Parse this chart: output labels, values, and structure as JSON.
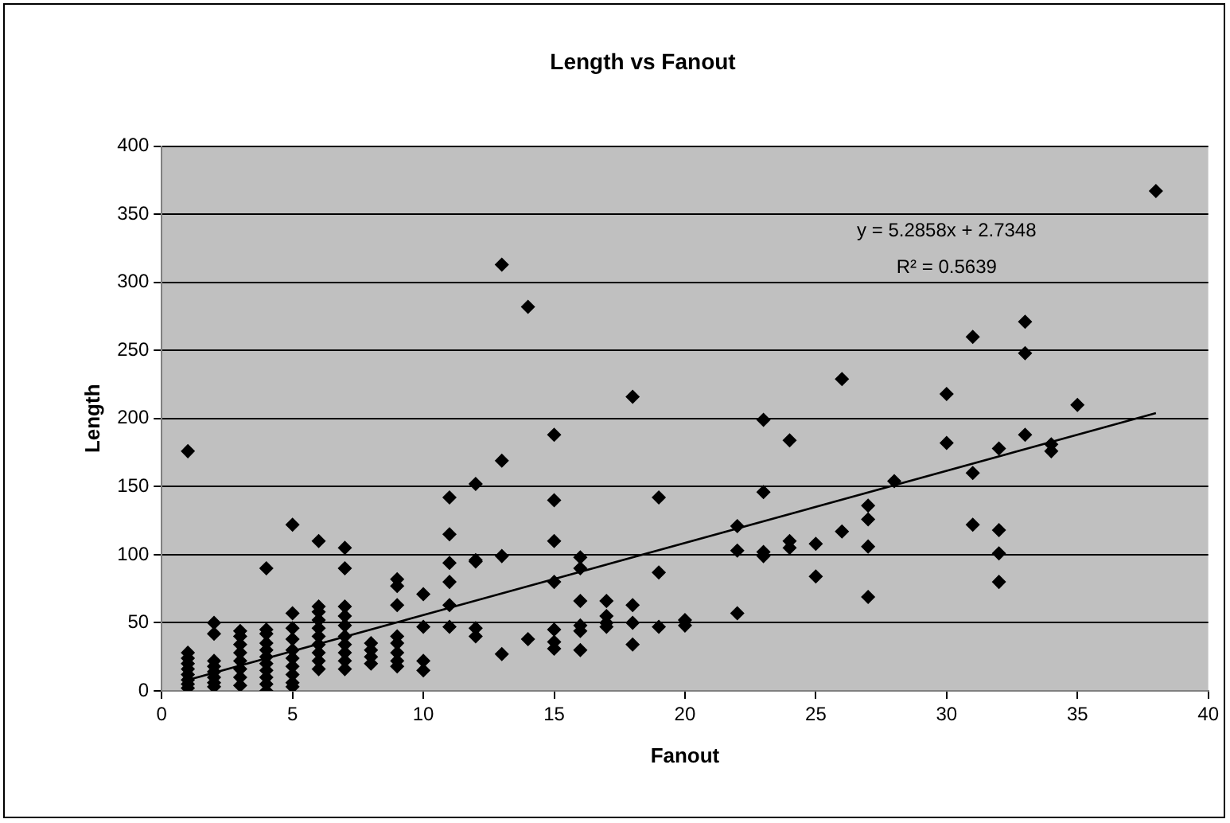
{
  "chart_data": {
    "type": "scatter",
    "title": "Length vs Fanout",
    "xlabel": "Fanout",
    "ylabel": "Length",
    "xlim": [
      0,
      40
    ],
    "xticks": [
      0,
      5,
      10,
      15,
      20,
      25,
      30,
      35,
      40
    ],
    "ylim": [
      0,
      400
    ],
    "yticks": [
      0,
      50,
      100,
      150,
      200,
      250,
      300,
      350,
      400
    ],
    "grid": "y",
    "legend": false,
    "annotations": [
      "y = 5.2858x + 2.7348",
      "R² = 0.5639"
    ],
    "series": [
      {
        "marker": "diamond",
        "color": "#000000",
        "x": [
          1,
          1,
          1,
          1,
          1,
          1,
          1,
          1,
          1,
          2,
          2,
          2,
          2,
          2,
          2,
          2,
          2,
          3,
          3,
          3,
          3,
          3,
          3,
          3,
          3,
          4,
          4,
          4,
          4,
          4,
          4,
          4,
          4,
          4,
          4,
          4,
          5,
          5,
          5,
          5,
          5,
          5,
          5,
          5,
          5,
          5,
          6,
          6,
          6,
          6,
          6,
          6,
          6,
          6,
          6,
          6,
          7,
          7,
          7,
          7,
          7,
          7,
          7,
          7,
          7,
          7,
          8,
          8,
          8,
          8,
          9,
          9,
          9,
          9,
          9,
          9,
          9,
          9,
          10,
          10,
          10,
          10,
          11,
          11,
          11,
          11,
          11,
          11,
          12,
          12,
          12,
          12,
          12,
          13,
          13,
          13,
          13,
          14,
          14,
          15,
          15,
          15,
          15,
          15,
          15,
          15,
          16,
          16,
          16,
          16,
          16,
          16,
          17,
          17,
          17,
          17,
          18,
          18,
          18,
          18,
          19,
          19,
          19,
          20,
          20,
          22,
          22,
          22,
          23,
          23,
          23,
          23,
          24,
          24,
          24,
          25,
          25,
          26,
          26,
          27,
          27,
          27,
          27,
          28,
          30,
          30,
          31,
          31,
          31,
          32,
          32,
          32,
          32,
          33,
          33,
          33,
          34,
          34,
          35,
          38
        ],
        "values": [
          176,
          28,
          24,
          20,
          16,
          12,
          8,
          5,
          2,
          50,
          42,
          22,
          18,
          14,
          10,
          6,
          3,
          44,
          40,
          34,
          28,
          22,
          16,
          10,
          4,
          90,
          45,
          42,
          35,
          30,
          25,
          20,
          15,
          10,
          5,
          0,
          122,
          57,
          46,
          38,
          30,
          24,
          18,
          12,
          6,
          3,
          110,
          62,
          58,
          52,
          46,
          40,
          34,
          28,
          22,
          16,
          105,
          90,
          62,
          55,
          48,
          40,
          34,
          28,
          22,
          16,
          35,
          30,
          25,
          20,
          82,
          77,
          63,
          40,
          35,
          28,
          22,
          18,
          71,
          47,
          22,
          15,
          142,
          115,
          94,
          80,
          63,
          47,
          152,
          96,
          95,
          46,
          40,
          313,
          169,
          99,
          27,
          282,
          38,
          188,
          140,
          110,
          80,
          45,
          36,
          31,
          98,
          90,
          66,
          48,
          44,
          30,
          66,
          55,
          50,
          47,
          216,
          63,
          50,
          34,
          142,
          87,
          47,
          52,
          48,
          121,
          103,
          57,
          199,
          146,
          102,
          99,
          184,
          110,
          105,
          108,
          84,
          229,
          117,
          136,
          126,
          106,
          69,
          154,
          218,
          182,
          260,
          160,
          122,
          178,
          118,
          101,
          80,
          271,
          248,
          188,
          181,
          176,
          210,
          367
        ]
      },
      {
        "type": "line",
        "marker": "none",
        "color": "#000000",
        "x": [
          1,
          38
        ],
        "values": [
          8,
          204
        ]
      }
    ]
  }
}
